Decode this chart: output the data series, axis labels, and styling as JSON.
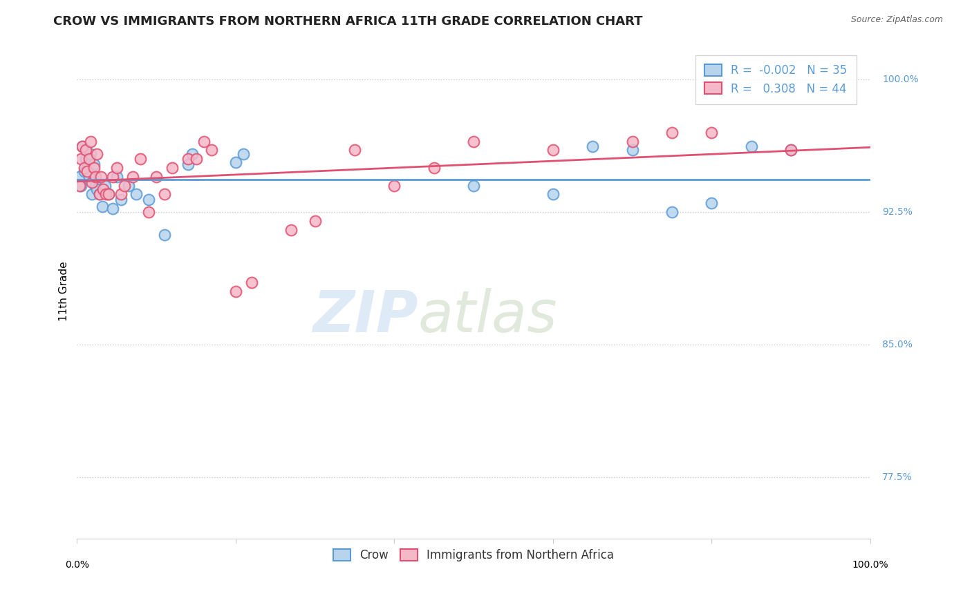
{
  "title": "CROW VS IMMIGRANTS FROM NORTHERN AFRICA 11TH GRADE CORRELATION CHART",
  "source": "Source: ZipAtlas.com",
  "ylabel": "11th Grade",
  "legend_crow": "Crow",
  "legend_immig": "Immigrants from Northern Africa",
  "crow_R": "-0.002",
  "crow_N": "35",
  "immig_R": "0.308",
  "immig_N": "44",
  "crow_color": "#b8d4ed",
  "immig_color": "#f5b8c8",
  "crow_edge_color": "#5b9bd5",
  "immig_edge_color": "#e05070",
  "crow_line_color": "#5b9bd5",
  "immig_line_color": "#e05070",
  "grid_color": "#cccccc",
  "right_label_color": "#5b9bd5",
  "xmin": 0,
  "xmax": 100,
  "ymin": 74,
  "ymax": 102,
  "yticks": [
    100.0,
    92.5,
    85.0,
    77.5
  ],
  "xtick_positions": [
    0,
    20,
    40,
    60,
    80,
    100
  ],
  "crow_x": [
    0.3,
    0.5,
    0.7,
    0.9,
    1.1,
    1.3,
    1.5,
    1.7,
    1.9,
    2.1,
    2.3,
    2.5,
    2.8,
    3.2,
    3.5,
    4.0,
    4.5,
    5.0,
    5.5,
    6.5,
    7.5,
    9.0,
    11.0,
    14.0,
    14.5,
    20.0,
    21.0,
    50.0,
    60.0,
    65.0,
    70.0,
    75.0,
    80.0,
    85.0,
    90.0
  ],
  "crow_y": [
    94.5,
    94.0,
    96.2,
    94.8,
    95.5,
    95.0,
    94.5,
    95.8,
    93.5,
    95.2,
    94.0,
    93.8,
    93.5,
    92.8,
    94.0,
    93.5,
    92.7,
    94.5,
    93.2,
    94.0,
    93.5,
    93.2,
    91.2,
    95.2,
    95.8,
    95.3,
    95.8,
    94.0,
    93.5,
    96.2,
    96.0,
    92.5,
    93.0,
    96.2,
    96.0
  ],
  "immig_x": [
    0.3,
    0.5,
    0.7,
    0.9,
    1.1,
    1.3,
    1.5,
    1.7,
    1.9,
    2.1,
    2.3,
    2.5,
    2.8,
    3.0,
    3.3,
    3.6,
    4.0,
    4.5,
    5.0,
    5.5,
    6.0,
    7.0,
    8.0,
    9.0,
    10.0,
    11.0,
    12.0,
    14.0,
    15.0,
    16.0,
    17.0,
    20.0,
    22.0,
    27.0,
    30.0,
    35.0,
    40.0,
    45.0,
    50.0,
    60.0,
    70.0,
    75.0,
    80.0,
    90.0
  ],
  "immig_y": [
    94.0,
    95.5,
    96.2,
    95.0,
    96.0,
    94.8,
    95.5,
    96.5,
    94.2,
    95.0,
    94.5,
    95.8,
    93.5,
    94.5,
    93.8,
    93.5,
    93.5,
    94.5,
    95.0,
    93.5,
    94.0,
    94.5,
    95.5,
    92.5,
    94.5,
    93.5,
    95.0,
    95.5,
    95.5,
    96.5,
    96.0,
    88.0,
    88.5,
    91.5,
    92.0,
    96.0,
    94.0,
    95.0,
    96.5,
    96.0,
    96.5,
    97.0,
    97.0,
    96.0
  ]
}
